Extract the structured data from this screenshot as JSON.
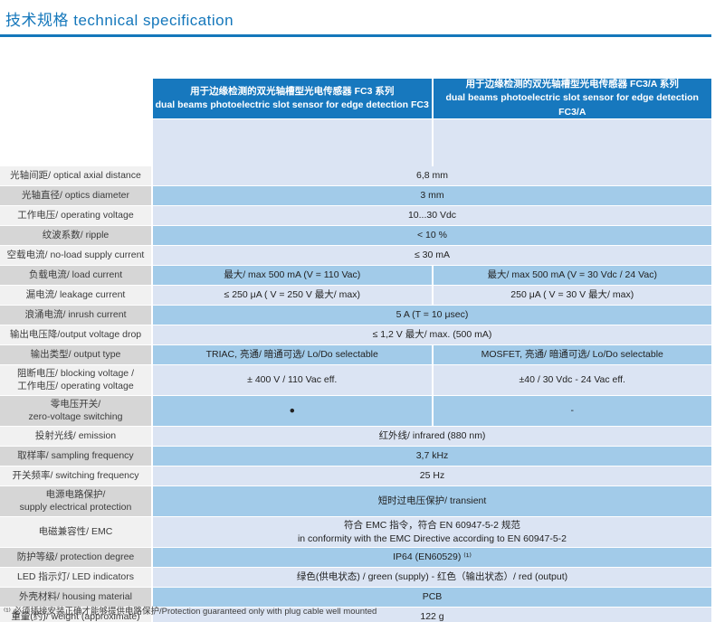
{
  "page": {
    "title": "技术规格 technical  specification"
  },
  "colors": {
    "accent_blue": "#1477bb",
    "header_blue": "#1778be",
    "row_light_blue": "#dbe4f3",
    "row_medium_blue": "#a2cbe9",
    "label_light_gray": "#f1f1f1",
    "label_gray": "#d6d6d6"
  },
  "table": {
    "columns": [
      {
        "zh": "用于边缘检测的双光轴槽型光电传感器 FC3 系列",
        "en": "dual beams photoelectric slot sensor for edge detection FC3"
      },
      {
        "zh": "用于边缘检测的双光轴槽型光电传感器 FC3/A 系列",
        "en": "dual beams photoelectric slot sensor for edge detection FC3/A"
      }
    ],
    "rows": [
      {
        "label": "光轴间距/ optical axial distance",
        "value": "6,8 mm"
      },
      {
        "label": "光轴直径/ optics diameter",
        "value": "3 mm"
      },
      {
        "label": "工作电压/ operating voltage",
        "value": "10...30 Vdc"
      },
      {
        "label": "纹波系数/ ripple",
        "value": "< 10 %"
      },
      {
        "label": "空载电流/ no-load supply current",
        "value": "≤ 30 mA"
      },
      {
        "label": "负载电流/ load current",
        "values": [
          "最大/ max 500 mA (V = 110 Vac)",
          "最大/ max 500 mA (V = 30 Vdc / 24 Vac)"
        ]
      },
      {
        "label": "漏电流/ leakage current",
        "values": [
          "≤ 250 μA ( V = 250 V 最大/ max)",
          "250 μA ( V = 30 V 最大/ max)"
        ]
      },
      {
        "label": "浪涌电流/ inrush current",
        "value": "5 A (T = 10 μsec)"
      },
      {
        "label": "输出电压降/output voltage drop",
        "value": "≤ 1,2 V 最大/ max. (500 mA)"
      },
      {
        "label": "输出类型/ output type",
        "values": [
          "TRIAC, 亮通/ 暗通可选/ Lo/Do selectable",
          "MOSFET, 亮通/ 暗通可选/ Lo/Do selectable"
        ]
      },
      {
        "label": "阻断电压/ blocking voltage /\n工作电压/ operating voltage",
        "values": [
          "± 400 V / 110 Vac eff.",
          "±40 / 30 Vdc - 24 Vac eff."
        ]
      },
      {
        "label": "零电压开关/\nzero-voltage switching",
        "values": [
          "●",
          "-"
        ]
      },
      {
        "label": "投射光线/ emission",
        "value": "红外线/ infrared (880 nm)"
      },
      {
        "label": "取样率/ sampling frequency",
        "value": "3,7 kHz"
      },
      {
        "label": "开关频率/ switching frequency",
        "value": "25 Hz"
      },
      {
        "label": "电源电路保护/\nsupply electrical protection",
        "value": "短时过电压保护/ transient"
      },
      {
        "label": "电磁兼容性/ EMC",
        "value": "符合 EMC 指令，符合 EN 60947-5-2 规范\nin conformity with the EMC Directive according to EN 60947-5-2"
      },
      {
        "label": "防护等级/ protection degree",
        "value": "IP64 (EN60529) ⁽¹⁾"
      },
      {
        "label": "LED 指示灯/ LED indicators",
        "value": "绿色(供电状态) / green (supply)  - 红色（输出状态）/ red (output)"
      },
      {
        "label": "外壳材料/ housing material",
        "value": "PCB"
      },
      {
        "label": "重量(约)/ weight (approximate)",
        "value": "122 g"
      }
    ]
  },
  "footnote": "⁽¹⁾ 必须插接安装正确才能够提供电路保护/Protection guaranteed only with plug cable well  mounted"
}
